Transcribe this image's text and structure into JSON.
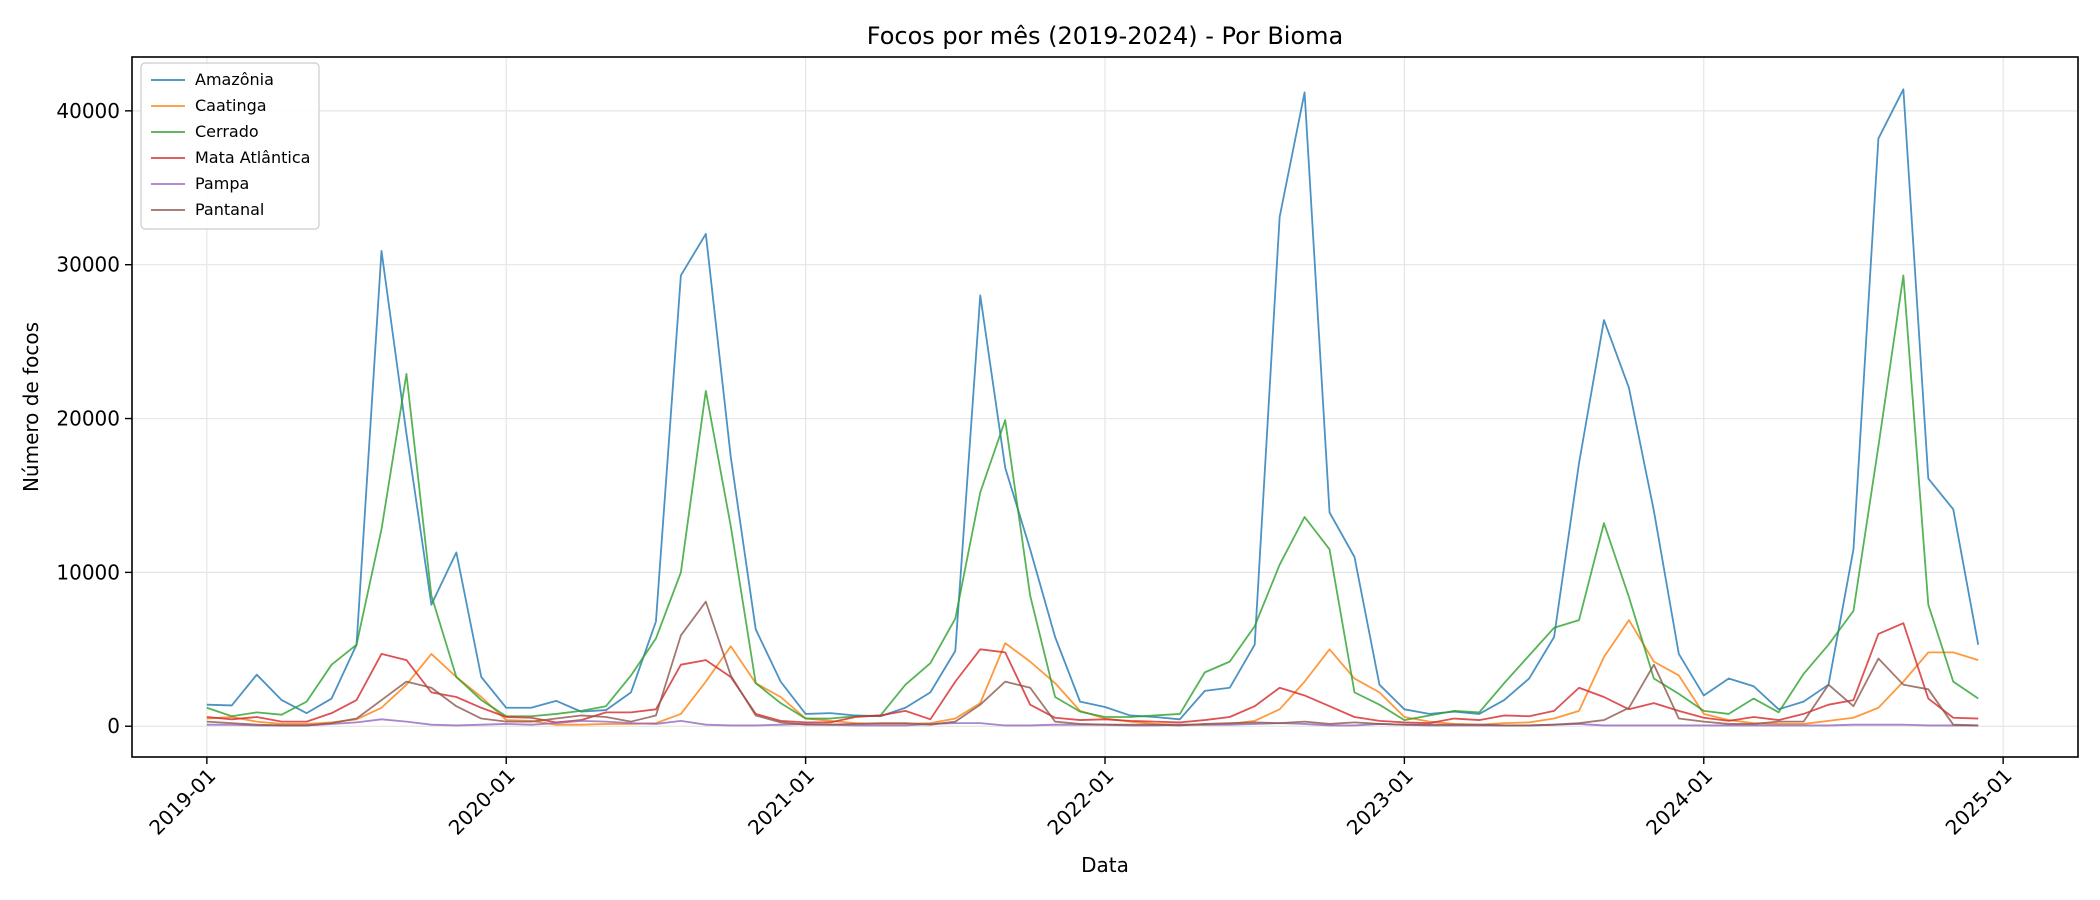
{
  "chart_data": {
    "type": "line",
    "title": "Focos por mês (2019-2024) - Por Bioma",
    "xlabel": "Data",
    "ylabel": "Número de focos",
    "x_start": "2019-01",
    "x_end": "2024-12",
    "x_ticks": [
      "2019-01",
      "2020-01",
      "2021-01",
      "2022-01",
      "2023-01",
      "2024-01",
      "2025-01"
    ],
    "y_ticks": [
      0,
      10000,
      20000,
      30000,
      40000
    ],
    "xlim": [
      "2018-10",
      "2025-04"
    ],
    "ylim": [
      -2000,
      43500
    ],
    "grid": true,
    "legend_position": "top-left",
    "series": [
      {
        "name": "Amazônia",
        "color": "#1f77b4",
        "values": [
          1400,
          1350,
          3350,
          1700,
          850,
          1800,
          5300,
          30900,
          19000,
          7900,
          11300,
          3200,
          1200,
          1200,
          1650,
          950,
          1050,
          2200,
          6800,
          29300,
          32000,
          17500,
          6300,
          2900,
          800,
          850,
          700,
          650,
          1200,
          2200,
          4900,
          28000,
          16800,
          11500,
          5800,
          1600,
          1250,
          700,
          600,
          450,
          2300,
          2500,
          5300,
          33100,
          41200,
          13900,
          11000,
          2700,
          1100,
          800,
          950,
          800,
          1700,
          3100,
          5800,
          17100,
          26400,
          22000,
          14000,
          4700,
          2000,
          3100,
          2600,
          1100,
          1600,
          2700,
          11500,
          38200,
          41400,
          16100,
          14100,
          5300
        ]
      },
      {
        "name": "Caatinga",
        "color": "#ff7f0e",
        "values": [
          500,
          600,
          300,
          150,
          150,
          250,
          450,
          1200,
          2700,
          4700,
          3200,
          1900,
          400,
          350,
          100,
          100,
          150,
          150,
          200,
          800,
          2900,
          5200,
          2800,
          1900,
          500,
          350,
          200,
          150,
          150,
          200,
          500,
          1500,
          5400,
          4200,
          2800,
          1000,
          500,
          300,
          150,
          100,
          100,
          150,
          350,
          1100,
          2900,
          5000,
          3100,
          2200,
          600,
          300,
          150,
          100,
          200,
          250,
          500,
          1000,
          4500,
          6900,
          4200,
          3300,
          800,
          400,
          200,
          150,
          150,
          350,
          550,
          1200,
          2900,
          4800,
          4800,
          4300
        ]
      },
      {
        "name": "Cerrado",
        "color": "#2ca02c",
        "values": [
          1200,
          650,
          900,
          750,
          1600,
          4000,
          5300,
          12800,
          22900,
          8500,
          3200,
          1700,
          650,
          650,
          800,
          1000,
          1300,
          3300,
          5700,
          10000,
          21800,
          13000,
          2800,
          1500,
          500,
          500,
          650,
          700,
          2700,
          4100,
          7000,
          15200,
          19900,
          8500,
          1900,
          950,
          600,
          600,
          700,
          800,
          3500,
          4200,
          6500,
          10500,
          13600,
          11500,
          2200,
          1400,
          400,
          700,
          1000,
          900,
          2800,
          4600,
          6400,
          6900,
          13200,
          8400,
          3100,
          2100,
          1000,
          800,
          1800,
          900,
          3400,
          5300,
          7500,
          18200,
          29300,
          7900,
          2900,
          1800
        ]
      },
      {
        "name": "Mata Atlântica",
        "color": "#d62728",
        "values": [
          600,
          450,
          600,
          300,
          300,
          850,
          1700,
          4700,
          4300,
          2200,
          1900,
          1200,
          600,
          550,
          250,
          400,
          900,
          900,
          1100,
          4000,
          4300,
          3200,
          800,
          350,
          250,
          250,
          600,
          700,
          1000,
          450,
          2900,
          5000,
          4800,
          1400,
          550,
          400,
          450,
          350,
          300,
          250,
          400,
          600,
          1300,
          2500,
          2000,
          1300,
          600,
          350,
          250,
          200,
          500,
          400,
          700,
          650,
          1000,
          2500,
          1900,
          1100,
          1500,
          1000,
          550,
          350,
          600,
          400,
          800,
          1400,
          1700,
          6000,
          6700,
          1800,
          550,
          500
        ]
      },
      {
        "name": "Pampa",
        "color": "#9467bd",
        "values": [
          100,
          100,
          50,
          50,
          50,
          150,
          250,
          450,
          300,
          100,
          50,
          100,
          150,
          100,
          200,
          350,
          300,
          200,
          150,
          350,
          100,
          50,
          50,
          100,
          150,
          100,
          50,
          50,
          50,
          150,
          200,
          200,
          50,
          50,
          100,
          100,
          100,
          50,
          50,
          100,
          100,
          100,
          150,
          200,
          150,
          50,
          50,
          150,
          100,
          50,
          50,
          50,
          50,
          50,
          100,
          150,
          50,
          50,
          50,
          50,
          50,
          50,
          50,
          50,
          50,
          50,
          100,
          100,
          100,
          50,
          50,
          50
        ]
      },
      {
        "name": "Pantanal",
        "color": "#8c564b",
        "values": [
          300,
          200,
          100,
          50,
          50,
          200,
          500,
          1700,
          2900,
          2500,
          1300,
          500,
          300,
          300,
          500,
          700,
          600,
          300,
          700,
          5900,
          8100,
          3300,
          700,
          250,
          100,
          100,
          150,
          200,
          200,
          100,
          300,
          1400,
          2900,
          2500,
          300,
          150,
          100,
          100,
          100,
          50,
          150,
          200,
          250,
          200,
          300,
          150,
          250,
          150,
          100,
          100,
          100,
          100,
          50,
          50,
          100,
          200,
          400,
          1200,
          4000,
          500,
          300,
          150,
          150,
          300,
          300,
          2700,
          1300,
          4400,
          2700,
          2400,
          100,
          50
        ]
      }
    ]
  }
}
